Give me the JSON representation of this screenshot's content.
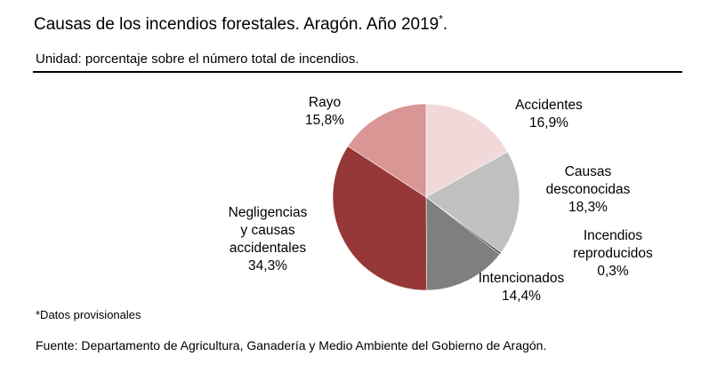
{
  "title": "Causas de los incendios forestales. Aragón. Año 2019",
  "title_mark": "*",
  "subtitle": "Unidad: porcentaje sobre el número total de incendios.",
  "footnote": "*Datos provisionales",
  "source": "Fuente: Departamento de Agricultura, Ganadería y Medio Ambiente del Gobierno de Aragón.",
  "chart_data": {
    "type": "pie",
    "unit": "%",
    "slices": [
      {
        "label_lines": [
          "Accidentes"
        ],
        "value_text": "16,9%",
        "value": 16.9,
        "color": "#f2d9d9"
      },
      {
        "label_lines": [
          "Causas",
          "desconocidas"
        ],
        "value_text": "18,3%",
        "value": 18.3,
        "color": "#c0c0c0"
      },
      {
        "label_lines": [
          "Incendios",
          "reproducidos"
        ],
        "value_text": "0,3%",
        "value": 0.3,
        "color": "#1a1a1a"
      },
      {
        "label_lines": [
          "Intencionados"
        ],
        "value_text": "14,4%",
        "value": 14.4,
        "color": "#7f7f7f"
      },
      {
        "label_lines": [
          "Negligencias",
          "y causas",
          "accidentales"
        ],
        "value_text": "34,3%",
        "value": 34.3,
        "color": "#963838"
      },
      {
        "label_lines": [
          "Rayo"
        ],
        "value_text": "15,8%",
        "value": 15.8,
        "color": "#d99694"
      }
    ]
  }
}
